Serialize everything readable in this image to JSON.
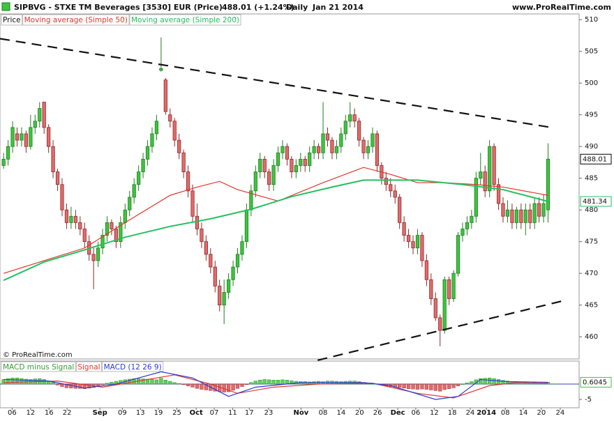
{
  "chart_data": {
    "type": "candlestick",
    "title": "SIPBVG - STXE TM Beverages [3530] EUR (Price)",
    "quote": "488.01 (+1.24%)",
    "period": "Daily",
    "date": "Jan 21 2014",
    "source": "www.ProRealTime.com",
    "copyright": "© ProRealTime.com",
    "price_label": "Price",
    "up_color": "#3fc43f",
    "down_color": "#e46a6a",
    "xlim": [
      -0.8,
      127.9
    ],
    "ylim": [
      456.5,
      510.9
    ],
    "yticks": [
      460,
      465,
      470,
      475,
      480,
      485,
      490,
      495,
      500,
      505,
      510
    ],
    "xticks": [
      {
        "value": 1.9,
        "label": "06"
      },
      {
        "value": 6.0,
        "label": "12"
      },
      {
        "value": 10.1,
        "label": "16"
      },
      {
        "value": 14.1,
        "label": "22"
      },
      {
        "value": 21.4,
        "label": "Sep"
      },
      {
        "value": 26.4,
        "label": "09"
      },
      {
        "value": 30.4,
        "label": "13"
      },
      {
        "value": 34.4,
        "label": "19"
      },
      {
        "value": 38.5,
        "label": "25"
      },
      {
        "value": 42.8,
        "label": "Oct"
      },
      {
        "value": 46.8,
        "label": "07"
      },
      {
        "value": 50.9,
        "label": "11"
      },
      {
        "value": 54.6,
        "label": "17"
      },
      {
        "value": 58.9,
        "label": "23"
      },
      {
        "value": 66.1,
        "label": "Nov"
      },
      {
        "value": 71.0,
        "label": "08"
      },
      {
        "value": 75.0,
        "label": "14"
      },
      {
        "value": 79.1,
        "label": "20"
      },
      {
        "value": 83.1,
        "label": "26"
      },
      {
        "value": 87.6,
        "label": "Dec"
      },
      {
        "value": 91.6,
        "label": "06"
      },
      {
        "value": 95.7,
        "label": "12"
      },
      {
        "value": 99.7,
        "label": "18"
      },
      {
        "value": 103.7,
        "label": "24"
      },
      {
        "value": 107.3,
        "label": "2014"
      },
      {
        "value": 111.5,
        "label": "08"
      },
      {
        "value": 115.5,
        "label": "14"
      },
      {
        "value": 119.5,
        "label": "20"
      },
      {
        "value": 123.7,
        "label": "24"
      }
    ],
    "ohlc": [
      [
        487,
        489,
        486.5,
        488
      ],
      [
        488,
        491,
        487,
        490
      ],
      [
        490,
        494,
        489,
        493
      ],
      [
        492,
        493,
        490,
        491
      ],
      [
        491,
        493,
        490,
        492
      ],
      [
        492,
        492.5,
        489,
        490
      ],
      [
        490,
        495,
        489.5,
        493
      ],
      [
        493,
        495,
        492,
        494
      ],
      [
        494,
        497,
        493,
        496
      ],
      [
        497,
        497,
        492,
        493
      ],
      [
        493,
        493.5,
        489,
        490
      ],
      [
        490,
        491,
        485,
        486
      ],
      [
        486,
        486.5,
        483,
        484
      ],
      [
        484,
        485,
        479,
        480
      ],
      [
        480,
        481,
        477,
        478
      ],
      [
        478,
        480.5,
        477,
        479
      ],
      [
        479,
        480,
        477,
        478
      ],
      [
        478,
        479,
        476,
        477
      ],
      [
        477,
        478,
        474,
        475
      ],
      [
        475,
        476,
        472,
        473
      ],
      [
        473,
        474,
        467.5,
        472
      ],
      [
        472,
        475,
        471,
        474
      ],
      [
        474,
        477,
        473,
        476
      ],
      [
        476,
        479,
        475,
        478
      ],
      [
        478,
        478.5,
        476,
        477
      ],
      [
        477,
        477.5,
        474,
        475
      ],
      [
        475,
        479,
        474,
        478
      ],
      [
        478,
        481,
        477,
        480
      ],
      [
        480,
        483,
        479,
        482
      ],
      [
        482,
        485,
        481,
        484
      ],
      [
        484,
        487,
        483,
        486
      ],
      [
        486,
        489,
        485,
        488
      ],
      [
        488,
        491,
        487,
        490
      ],
      [
        490,
        493,
        489,
        492
      ],
      [
        492,
        495,
        491,
        494
      ],
      [
        502,
        507.2,
        501.8,
        502.3
      ],
      [
        500.5,
        500.8,
        495,
        495.5
      ],
      [
        495,
        496,
        493,
        494
      ],
      [
        494,
        494.5,
        490,
        491
      ],
      [
        491,
        492,
        488,
        489
      ],
      [
        489,
        489.5,
        485,
        486
      ],
      [
        486,
        487,
        482,
        483
      ],
      [
        483,
        484,
        478,
        479
      ],
      [
        479,
        481,
        476,
        477
      ],
      [
        477,
        478,
        474,
        475
      ],
      [
        475,
        476,
        472,
        473
      ],
      [
        473,
        474,
        470,
        471
      ],
      [
        471,
        472,
        467,
        468
      ],
      [
        468,
        469,
        464,
        465
      ],
      [
        465,
        469,
        462,
        467
      ],
      [
        467,
        470,
        466,
        469
      ],
      [
        469,
        472,
        468,
        471
      ],
      [
        471,
        474,
        470,
        473
      ],
      [
        473,
        476,
        472,
        475
      ],
      [
        475,
        481,
        474,
        480
      ],
      [
        480,
        484,
        479,
        483
      ],
      [
        483,
        487,
        482,
        486
      ],
      [
        486,
        489,
        485,
        488
      ],
      [
        488,
        488.5,
        485,
        486
      ],
      [
        486,
        486.5,
        483,
        484
      ],
      [
        484,
        488,
        483,
        487
      ],
      [
        487,
        490,
        486,
        489
      ],
      [
        489,
        491,
        488,
        490
      ],
      [
        490,
        490.5,
        487,
        488
      ],
      [
        488,
        488.5,
        485,
        486
      ],
      [
        486,
        488,
        485,
        487
      ],
      [
        487,
        489,
        486,
        488
      ],
      [
        488,
        488.5,
        486,
        487
      ],
      [
        487,
        490,
        486,
        489
      ],
      [
        489,
        491,
        488,
        490
      ],
      [
        490,
        490.5,
        488,
        489
      ],
      [
        489,
        497,
        488,
        492
      ],
      [
        492,
        493,
        490,
        491
      ],
      [
        491,
        491.5,
        488,
        489
      ],
      [
        489,
        491,
        488,
        490
      ],
      [
        490,
        493,
        489,
        492
      ],
      [
        492,
        495,
        491,
        494
      ],
      [
        494,
        497,
        493,
        495
      ],
      [
        495,
        496,
        493,
        494
      ],
      [
        494,
        494.5,
        490,
        491
      ],
      [
        491,
        491.5,
        488,
        489
      ],
      [
        489,
        491,
        488,
        490
      ],
      [
        490,
        493,
        489,
        492
      ],
      [
        492,
        492.5,
        486,
        487
      ],
      [
        487,
        487.5,
        484,
        485
      ],
      [
        485,
        486,
        483,
        484
      ],
      [
        484,
        485,
        482,
        483
      ],
      [
        483,
        484,
        481,
        482
      ],
      [
        482,
        482.5,
        477,
        478
      ],
      [
        478,
        479,
        475,
        476
      ],
      [
        476,
        477,
        474,
        475
      ],
      [
        475,
        476,
        473,
        474
      ],
      [
        474,
        477,
        473,
        476
      ],
      [
        476,
        476.5,
        471,
        472
      ],
      [
        472,
        473,
        468,
        469
      ],
      [
        469,
        470,
        465,
        466
      ],
      [
        466,
        467,
        462.5,
        463
      ],
      [
        463,
        463.5,
        458.5,
        461
      ],
      [
        461,
        469.5,
        460.5,
        469
      ],
      [
        469,
        469.5,
        465,
        466
      ],
      [
        466,
        470.5,
        465.5,
        470
      ],
      [
        470,
        476.5,
        469.5,
        476
      ],
      [
        476,
        478,
        475,
        477
      ],
      [
        477,
        479,
        476,
        478
      ],
      [
        478,
        480,
        477,
        479
      ],
      [
        479,
        486,
        478,
        485
      ],
      [
        485,
        489,
        484,
        486
      ],
      [
        486,
        487,
        482,
        483
      ],
      [
        483,
        491,
        482,
        490
      ],
      [
        490,
        490.5,
        483,
        484
      ],
      [
        484,
        485,
        480,
        481
      ],
      [
        481,
        482,
        478,
        479
      ],
      [
        479,
        481.5,
        478,
        480
      ],
      [
        480,
        481,
        477,
        478
      ],
      [
        478,
        480.5,
        477,
        480
      ],
      [
        480,
        481,
        477,
        478
      ],
      [
        478,
        481,
        476,
        480
      ],
      [
        480,
        481,
        477,
        478
      ],
      [
        478,
        482,
        477,
        481
      ],
      [
        481,
        482,
        478,
        479
      ],
      [
        479,
        482.5,
        478,
        481
      ],
      [
        480,
        490.5,
        478,
        488.01
      ]
    ],
    "overlays": [
      {
        "name": "Moving average (Simple 50)",
        "color": "#e3342c",
        "x": [
          0,
          9,
          18,
          27,
          37,
          43,
          48,
          52,
          61,
          71,
          80,
          86,
          92,
          98,
          105,
          111,
          121
        ],
        "values": [
          470,
          472,
          474,
          478,
          482.3,
          483.6,
          484.5,
          483.2,
          481.4,
          484.3,
          486.7,
          485.6,
          484.3,
          484.3,
          484,
          483.6,
          482.3
        ]
      },
      {
        "name": "Moving average (Simple 200)",
        "color": "#22c15e",
        "x": [
          0,
          9,
          18,
          27,
          37,
          46,
          55,
          64,
          73,
          80,
          86,
          92,
          102,
          111,
          121
        ],
        "values": [
          468.9,
          471.8,
          473.7,
          475.7,
          477.4,
          478.6,
          480.1,
          482.1,
          483.6,
          484.7,
          484.7,
          484.7,
          484,
          483.2,
          481.34
        ]
      }
    ],
    "trendlines": [
      {
        "x": [
          -0.8,
          121.7
        ],
        "values": [
          507,
          493
        ]
      },
      {
        "x": [
          69.8,
          125.1
        ],
        "values": [
          456.3,
          465.8
        ]
      }
    ],
    "macd": {
      "type": "bar",
      "ylim": [
        -7.7,
        7.5
      ],
      "yticks": [
        -5
      ],
      "series": [
        {
          "name": "MACD minus Signal",
          "up_color": "#5bd15b",
          "down_color": "#e46a6a",
          "values": [
            1.5,
            1.8,
            2,
            2,
            1.8,
            1.6,
            1.5,
            1.7,
            1.8,
            1.5,
            1,
            0.5,
            -0.3,
            -0.8,
            -1.2,
            -1.3,
            -1.4,
            -1.4,
            -1.5,
            -1.3,
            -1.1,
            -0.6,
            -0.2,
            0.3,
            0.6,
            0.9,
            1.2,
            1.4,
            1.6,
            1.8,
            1.8,
            1.7,
            1.6,
            1.5,
            1.4,
            1.9,
            1.3,
            0.9,
            0.5,
            0.2,
            -0.2,
            -0.6,
            -1,
            -1.4,
            -1.7,
            -1.9,
            -2.1,
            -2.3,
            -2.5,
            -2.6,
            -2.5,
            -2,
            -1.4,
            -0.8,
            -0.2,
            0.5,
            1,
            1.3,
            1.5,
            1.4,
            1.3,
            1.3,
            1.4,
            1.3,
            1.1,
            0.9,
            0.8,
            0.8,
            0.7,
            0.8,
            0.9,
            0.8,
            1,
            1,
            0.9,
            0.8,
            0.9,
            1,
            1,
            0.8,
            0.5,
            0.2,
            0.1,
            0.1,
            -0.3,
            -0.6,
            -0.8,
            -1,
            -1.1,
            -1.3,
            -1.5,
            -1.6,
            -1.7,
            -1.6,
            -1.7,
            -1.9,
            -2.1,
            -2.3,
            -1.8,
            -1.5,
            -1.2,
            -0.6,
            0,
            0.4,
            0.8,
            1.4,
            1.8,
            1.9,
            2,
            1.8,
            1.5,
            1.2,
            1,
            0.8,
            0.6,
            0.5,
            0.4,
            0.4,
            0.5,
            0.4,
            0.3,
            0.6045
          ]
        },
        {
          "name": "Signal",
          "color": "#e3342c",
          "x": [
            0,
            12,
            22,
            30,
            38,
            46,
            52,
            60,
            70,
            82,
            92,
            100,
            108,
            114,
            121
          ],
          "values": [
            0.5,
            1,
            -1,
            1,
            3,
            0,
            -3,
            -1,
            0,
            0.3,
            -3,
            -4.5,
            -0.5,
            0.5,
            0.3
          ]
        },
        {
          "name": "MACD (12 26 9)",
          "color": "#2a3bd6",
          "x": [
            0,
            10,
            18,
            25,
            35,
            42,
            50,
            56,
            66,
            80,
            86,
            96,
            101,
            106,
            112,
            121
          ],
          "values": [
            1.5,
            1,
            -1.3,
            0,
            4,
            2,
            -4,
            -1,
            0.5,
            0.5,
            -0.5,
            -5,
            -4,
            1.5,
            0.8,
            0.6
          ]
        }
      ]
    }
  }
}
